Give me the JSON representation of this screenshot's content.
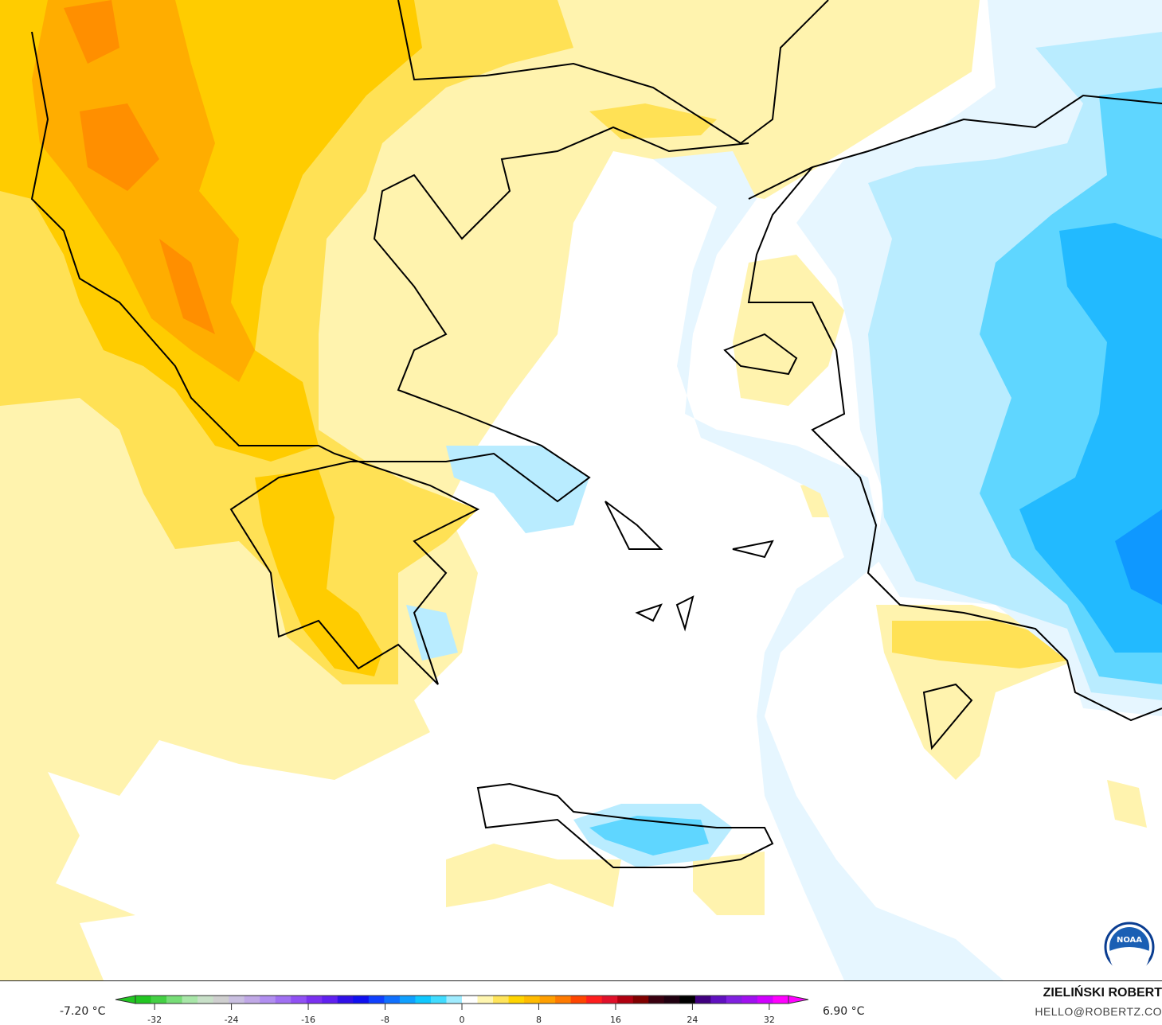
{
  "legend": {
    "min_label": "-7.20 °C",
    "max_label": "6.90 °C",
    "ticks": [
      "-32",
      "-24",
      "-16",
      "-8",
      "0",
      "8",
      "16",
      "24",
      "32"
    ],
    "tick_values": [
      -32,
      -24,
      -16,
      -8,
      0,
      8,
      16,
      24,
      32
    ],
    "range": [
      -34,
      34
    ],
    "colormap": [
      "#22c622",
      "#44d044",
      "#77dd77",
      "#a8e6a8",
      "#c8e0c8",
      "#cfcfcf",
      "#c9bfe0",
      "#c0a8e6",
      "#b18ef0",
      "#a070f2",
      "#9050f4",
      "#7a30f0",
      "#6020f0",
      "#3010e8",
      "#1010f0",
      "#1040ff",
      "#1070ff",
      "#10a0ff",
      "#10c8ff",
      "#40dcff",
      "#a0ecff",
      "#ffffff",
      "#fff6b0",
      "#ffe45a",
      "#ffd400",
      "#ffbb00",
      "#ff9f00",
      "#ff7a00",
      "#ff4500",
      "#ff1e1e",
      "#e0102a",
      "#b00010",
      "#800000",
      "#3a0010",
      "#200010",
      "#000000",
      "#400080",
      "#6010c0",
      "#8020e0",
      "#a010f0",
      "#d000ff",
      "#ff00ff"
    ]
  },
  "credits": {
    "author": "ZIELIŃSKI ROBERT",
    "email": "HELLO@ROBERTZ.CO",
    "logo_text": "NOAA"
  },
  "map_colors": {
    "sea": "#ffffff",
    "warm_1": "#fff3ae",
    "warm_2": "#ffe155",
    "warm_3": "#ffcc00",
    "warm_4": "#ffad00",
    "warm_5": "#ff8f00",
    "cool_1": "#e6f6ff",
    "cool_2": "#b9ecff",
    "cool_3": "#5fd6ff",
    "cool_4": "#22baff",
    "cool_5": "#0f98ff",
    "coast": "#000000",
    "border": "#555555"
  }
}
